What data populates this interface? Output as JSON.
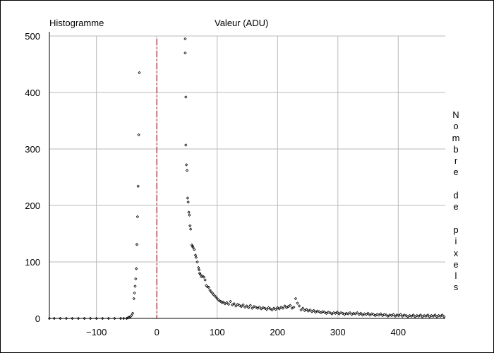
{
  "chart_data": {
    "type": "scatter",
    "title": "Histogramme",
    "xlabel": "Valeur (ADU)",
    "ylabel": "Nombre de pixels",
    "xlim": [
      -178,
      478
    ],
    "ylim": [
      0,
      500
    ],
    "x_ticks": [
      -100,
      0,
      100,
      200,
      300,
      400
    ],
    "y_ticks": [
      0,
      100,
      200,
      300,
      400,
      500
    ],
    "grid": true,
    "reference_line": {
      "x": 0,
      "color": "#cc2222",
      "style": "dash-dot"
    },
    "marker_color": "#000000",
    "series": [
      {
        "points": [
          [
            -178,
            0
          ],
          [
            -170,
            0
          ],
          [
            -160,
            0
          ],
          [
            -150,
            0
          ],
          [
            -140,
            0
          ],
          [
            -130,
            0
          ],
          [
            -120,
            0
          ],
          [
            -110,
            0
          ],
          [
            -100,
            0
          ],
          [
            -90,
            0
          ],
          [
            -80,
            0
          ],
          [
            -70,
            0
          ],
          [
            -60,
            0
          ],
          [
            -55,
            0
          ],
          [
            -50,
            0
          ],
          [
            -48,
            1
          ],
          [
            -46,
            2
          ],
          [
            -44,
            3
          ],
          [
            -42,
            5
          ],
          [
            -40,
            9
          ],
          [
            -38,
            35
          ],
          [
            -37,
            45
          ],
          [
            -36,
            57
          ],
          [
            -35,
            70
          ],
          [
            -34,
            88
          ],
          [
            -33,
            131
          ],
          [
            -32,
            180
          ],
          [
            -31,
            234
          ],
          [
            -30,
            325
          ],
          [
            -29,
            435
          ],
          [
            47,
            495
          ],
          [
            47,
            470
          ],
          [
            48,
            392
          ],
          [
            48,
            307
          ],
          [
            49,
            272
          ],
          [
            50,
            262
          ],
          [
            51,
            213
          ],
          [
            52,
            206
          ],
          [
            53,
            188
          ],
          [
            54,
            183
          ],
          [
            55,
            164
          ],
          [
            56,
            158
          ],
          [
            58,
            130
          ],
          [
            59,
            128
          ],
          [
            60,
            126
          ],
          [
            62,
            122
          ],
          [
            64,
            112
          ],
          [
            65,
            108
          ],
          [
            67,
            100
          ],
          [
            69,
            90
          ],
          [
            70,
            86
          ],
          [
            71,
            80
          ],
          [
            72,
            78
          ],
          [
            74,
            74
          ],
          [
            76,
            75
          ],
          [
            78,
            73
          ],
          [
            80,
            68
          ],
          [
            82,
            58
          ],
          [
            84,
            56
          ],
          [
            86,
            55
          ],
          [
            88,
            50
          ],
          [
            90,
            47
          ],
          [
            92,
            45
          ],
          [
            94,
            42
          ],
          [
            96,
            40
          ],
          [
            98,
            38
          ],
          [
            100,
            35
          ],
          [
            102,
            33
          ],
          [
            104,
            31
          ],
          [
            106,
            30
          ],
          [
            108,
            28
          ],
          [
            110,
            29
          ],
          [
            113,
            26
          ],
          [
            116,
            28
          ],
          [
            119,
            25
          ],
          [
            122,
            30
          ],
          [
            125,
            24
          ],
          [
            128,
            26
          ],
          [
            131,
            22
          ],
          [
            134,
            25
          ],
          [
            137,
            23
          ],
          [
            140,
            21
          ],
          [
            143,
            24
          ],
          [
            146,
            20
          ],
          [
            149,
            22
          ],
          [
            152,
            19
          ],
          [
            155,
            23
          ],
          [
            158,
            18
          ],
          [
            161,
            21
          ],
          [
            164,
            20
          ],
          [
            167,
            18
          ],
          [
            170,
            20
          ],
          [
            173,
            17
          ],
          [
            176,
            19
          ],
          [
            179,
            18
          ],
          [
            182,
            16
          ],
          [
            185,
            19
          ],
          [
            188,
            17
          ],
          [
            191,
            15
          ],
          [
            194,
            18
          ],
          [
            197,
            16
          ],
          [
            200,
            19
          ],
          [
            203,
            17
          ],
          [
            206,
            20
          ],
          [
            209,
            18
          ],
          [
            212,
            22
          ],
          [
            215,
            19
          ],
          [
            218,
            21
          ],
          [
            221,
            23
          ],
          [
            224,
            18
          ],
          [
            227,
            20
          ],
          [
            230,
            35
          ],
          [
            233,
            27
          ],
          [
            236,
            22
          ],
          [
            239,
            15
          ],
          [
            242,
            18
          ],
          [
            245,
            14
          ],
          [
            248,
            16
          ],
          [
            251,
            13
          ],
          [
            254,
            15
          ],
          [
            257,
            12
          ],
          [
            260,
            14
          ],
          [
            263,
            11
          ],
          [
            266,
            13
          ],
          [
            269,
            12
          ],
          [
            272,
            10
          ],
          [
            275,
            12
          ],
          [
            278,
            11
          ],
          [
            281,
            9
          ],
          [
            284,
            11
          ],
          [
            287,
            10
          ],
          [
            290,
            8
          ],
          [
            293,
            10
          ],
          [
            296,
            9
          ],
          [
            299,
            11
          ],
          [
            302,
            8
          ],
          [
            305,
            10
          ],
          [
            308,
            9
          ],
          [
            311,
            7
          ],
          [
            314,
            9
          ],
          [
            317,
            8
          ],
          [
            320,
            10
          ],
          [
            323,
            7
          ],
          [
            326,
            9
          ],
          [
            329,
            8
          ],
          [
            332,
            10
          ],
          [
            335,
            7
          ],
          [
            338,
            9
          ],
          [
            341,
            6
          ],
          [
            344,
            8
          ],
          [
            347,
            7
          ],
          [
            350,
            9
          ],
          [
            353,
            6
          ],
          [
            356,
            8
          ],
          [
            359,
            7
          ],
          [
            362,
            5
          ],
          [
            365,
            7
          ],
          [
            368,
            6
          ],
          [
            371,
            8
          ],
          [
            374,
            5
          ],
          [
            377,
            7
          ],
          [
            380,
            6
          ],
          [
            383,
            4
          ],
          [
            386,
            6
          ],
          [
            389,
            5
          ],
          [
            392,
            7
          ],
          [
            395,
            4
          ],
          [
            398,
            6
          ],
          [
            401,
            5
          ],
          [
            404,
            7
          ],
          [
            407,
            4
          ],
          [
            410,
            6
          ],
          [
            413,
            5
          ],
          [
            416,
            3
          ],
          [
            419,
            5
          ],
          [
            422,
            4
          ],
          [
            425,
            6
          ],
          [
            428,
            3
          ],
          [
            431,
            5
          ],
          [
            434,
            4
          ],
          [
            437,
            6
          ],
          [
            440,
            3
          ],
          [
            443,
            5
          ],
          [
            446,
            4
          ],
          [
            449,
            6
          ],
          [
            452,
            3
          ],
          [
            455,
            5
          ],
          [
            458,
            4
          ],
          [
            461,
            6
          ],
          [
            464,
            3
          ],
          [
            467,
            5
          ],
          [
            470,
            4
          ],
          [
            473,
            6
          ],
          [
            476,
            3
          ]
        ]
      }
    ]
  }
}
